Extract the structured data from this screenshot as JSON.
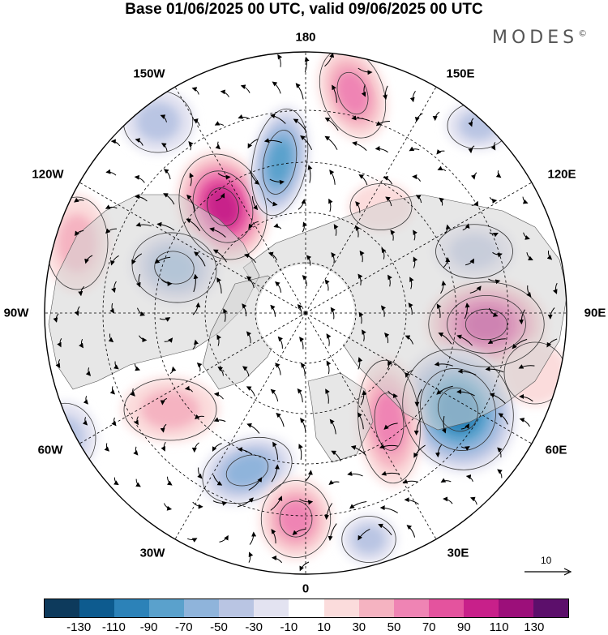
{
  "title": "Base 01/06/2025 00 UTC, valid 09/06/2025 00 UTC",
  "brand": "MODES",
  "brand_mark": "©",
  "longitude_labels": {
    "lon_180": "180",
    "lon_150e": "150E",
    "lon_120e": "120E",
    "lon_90e": "90E",
    "lon_60e": "60E",
    "lon_30e": "30E",
    "lon_0": "0",
    "lon_30w": "30W",
    "lon_60w": "60W",
    "lon_90w": "90W",
    "lon_120w": "120W",
    "lon_150w": "150W"
  },
  "reference_vector": {
    "value": "10",
    "arrow_icon": "reference-arrow-icon"
  },
  "colorbar": {
    "colors": [
      "#0d3a5c",
      "#0d5b8f",
      "#2c82b8",
      "#5aa1cc",
      "#8fb4db",
      "#b9c5e3",
      "#e3e3f1",
      "#ffffff",
      "#fbdcdc",
      "#f5b3c1",
      "#ef84b4",
      "#e4539e",
      "#c8208a",
      "#9c0f7a",
      "#5c0f6b"
    ],
    "labels": [
      "-130",
      "-110",
      "-90",
      "-70",
      "-50",
      "-30",
      "-10",
      "10",
      "30",
      "50",
      "70",
      "90",
      "110",
      "130"
    ]
  },
  "colors": {
    "land_gray": "#d3d3d3",
    "frame": "#000000"
  }
}
